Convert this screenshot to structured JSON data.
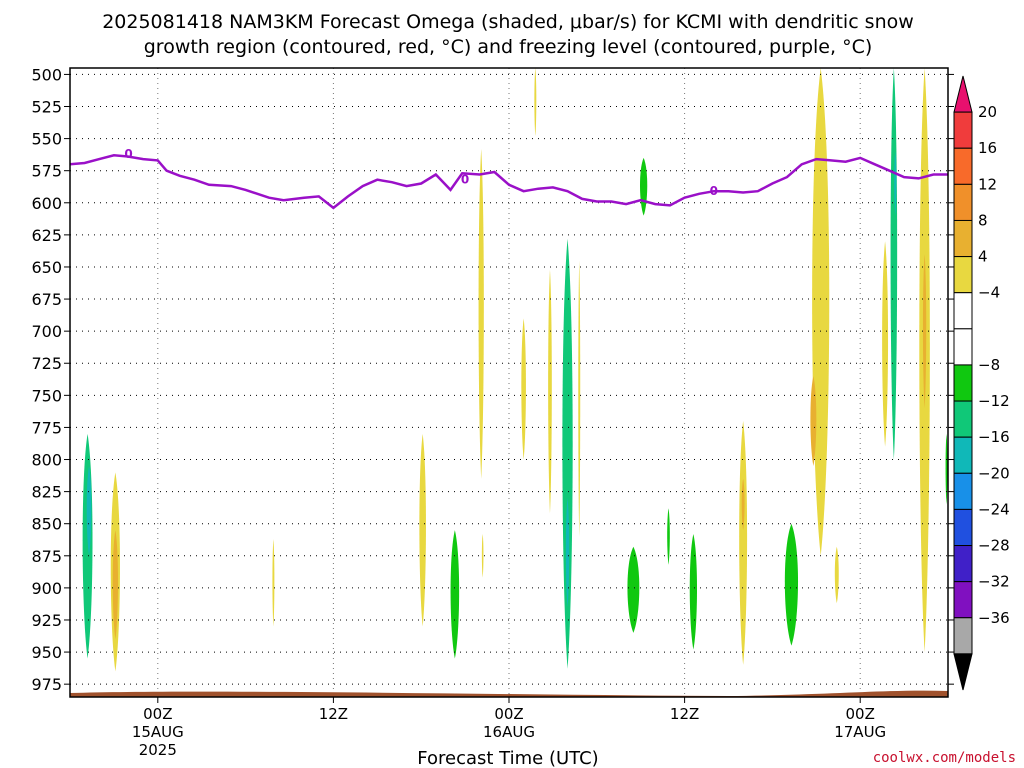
{
  "title_line1": "2025081418 NAM3KM Forecast Omega (shaded, μbar/s) for KCMI with dendritic snow",
  "title_line2": "growth region (contoured, red, °C) and freezing level (contoured, purple, °C)",
  "credit": "coolwx.com/models",
  "chart_data": {
    "type": "heatmap",
    "title": "2025081418 NAM3KM Forecast Omega (shaded, μbar/s) for KCMI with dendritic snow growth region (contoured, red, °C) and freezing level (contoured, purple, °C)",
    "xlabel": "Forecast Time (UTC)",
    "ylabel": "",
    "x_range_hours_from_2025081418": [
      0,
      60
    ],
    "y_scale": "pressure (inverted)",
    "ylim_hpa": [
      985,
      495
    ],
    "y_ticks": [
      "500",
      "525",
      "550",
      "575",
      "600",
      "625",
      "650",
      "675",
      "700",
      "725",
      "750",
      "775",
      "800",
      "825",
      "850",
      "875",
      "900",
      "925",
      "950",
      "975"
    ],
    "x_ticks": [
      {
        "hour": 6,
        "lines": [
          "00Z",
          "15AUG",
          "2025"
        ]
      },
      {
        "hour": 18,
        "lines": [
          "12Z"
        ]
      },
      {
        "hour": 30,
        "lines": [
          "00Z",
          "16AUG"
        ]
      },
      {
        "hour": 42,
        "lines": [
          "12Z"
        ]
      },
      {
        "hour": 54,
        "lines": [
          "00Z",
          "17AUG"
        ]
      }
    ],
    "grid": "dotted",
    "colorbar": {
      "placement": "right",
      "labels": [
        "20",
        "16",
        "12",
        "8",
        "4",
        "−4",
        "−8",
        "−12",
        "−16",
        "−20",
        "−24",
        "−28",
        "−32",
        "−36"
      ],
      "bands_top_to_bottom": [
        {
          "color": "#e8106e",
          "shape": "triangle"
        },
        {
          "color": "#f03c3c"
        },
        {
          "color": "#f86a2a"
        },
        {
          "color": "#f0902a"
        },
        {
          "color": "#e8b030"
        },
        {
          "color": "#e8d840"
        },
        {
          "color": "#ffffff"
        },
        {
          "color": "#ffffff"
        },
        {
          "color": "#10c810"
        },
        {
          "color": "#10c878"
        },
        {
          "color": "#10b8b8"
        },
        {
          "color": "#1890e8"
        },
        {
          "color": "#2050e0"
        },
        {
          "color": "#4020c8"
        },
        {
          "color": "#8010c0"
        },
        {
          "color": "#a8a8a8"
        },
        {
          "color": "#000000",
          "shape": "triangle"
        }
      ]
    },
    "freezing_level": {
      "color": "#9a10c8",
      "label": "0",
      "points": [
        [
          0,
          570
        ],
        [
          1,
          569
        ],
        [
          2,
          566
        ],
        [
          3,
          563
        ],
        [
          4,
          564
        ],
        [
          5,
          566
        ],
        [
          6,
          567
        ],
        [
          6.6,
          575
        ],
        [
          7.5,
          579
        ],
        [
          8.5,
          582
        ],
        [
          9.5,
          586
        ],
        [
          11,
          587
        ],
        [
          12,
          590
        ],
        [
          13.6,
          596
        ],
        [
          14.6,
          598
        ],
        [
          16,
          596
        ],
        [
          17,
          595
        ],
        [
          18,
          604
        ],
        [
          19,
          595
        ],
        [
          20,
          587
        ],
        [
          21,
          582
        ],
        [
          22,
          584
        ],
        [
          23,
          587
        ],
        [
          24,
          585
        ],
        [
          25,
          578
        ],
        [
          26,
          590
        ],
        [
          26.8,
          577
        ],
        [
          28,
          578
        ],
        [
          29,
          576
        ],
        [
          30,
          586
        ],
        [
          31,
          591
        ],
        [
          32,
          589
        ],
        [
          33,
          588
        ],
        [
          34,
          591
        ],
        [
          35,
          597
        ],
        [
          36,
          599
        ],
        [
          37,
          599
        ],
        [
          38,
          601
        ],
        [
          39,
          598
        ],
        [
          40,
          601
        ],
        [
          41,
          602
        ],
        [
          42,
          596
        ],
        [
          43,
          593
        ],
        [
          44,
          591
        ],
        [
          45,
          591
        ],
        [
          46,
          592
        ],
        [
          47,
          591
        ],
        [
          48,
          585
        ],
        [
          49,
          580
        ],
        [
          50,
          570
        ],
        [
          51,
          566
        ],
        [
          52,
          567
        ],
        [
          53,
          568
        ],
        [
          54,
          565
        ],
        [
          55,
          570
        ],
        [
          56,
          575
        ],
        [
          57,
          580
        ],
        [
          58,
          581
        ],
        [
          59,
          578
        ],
        [
          60,
          578
        ]
      ],
      "label_points": [
        [
          4,
          562
        ],
        [
          27,
          582
        ],
        [
          44,
          591
        ]
      ]
    },
    "surface_shading": {
      "color": "#a0522d",
      "pressure_hpa": 985
    },
    "omega_regions": [
      {
        "value": -10,
        "x": 1.2,
        "pmin": 780,
        "pmax": 955,
        "w": 0.75
      },
      {
        "value": -14,
        "x": 1.3,
        "pmin": 805,
        "pmax": 875,
        "w": 0.35
      },
      {
        "value": 6,
        "x": 3.1,
        "pmin": 810,
        "pmax": 965,
        "w": 0.7
      },
      {
        "value": 10,
        "x": 3.1,
        "pmin": 855,
        "pmax": 940,
        "w": 0.4
      },
      {
        "value": 6,
        "x": 13.9,
        "pmin": 862,
        "pmax": 930,
        "w": 0.15
      },
      {
        "value": 6,
        "x": 24.1,
        "pmin": 780,
        "pmax": 930,
        "w": 0.5
      },
      {
        "value": -6,
        "x": 26.3,
        "pmin": 855,
        "pmax": 955,
        "w": 0.65
      },
      {
        "value": 6,
        "x": 28.1,
        "pmin": 558,
        "pmax": 815,
        "w": 0.4
      },
      {
        "value": 6,
        "x": 28.2,
        "pmin": 858,
        "pmax": 892,
        "w": 0.12
      },
      {
        "value": 6,
        "x": 31.0,
        "pmin": 690,
        "pmax": 800,
        "w": 0.35
      },
      {
        "value": 6,
        "x": 32.8,
        "pmin": 652,
        "pmax": 842,
        "w": 0.28
      },
      {
        "value": -8,
        "x": 34.0,
        "pmin": 628,
        "pmax": 963,
        "w": 0.78
      },
      {
        "value": -14,
        "x": 34.0,
        "pmin": 830,
        "pmax": 915,
        "w": 0.25
      },
      {
        "value": 6,
        "x": 34.8,
        "pmin": 645,
        "pmax": 860,
        "w": 0.15
      },
      {
        "value": 6,
        "x": 31.8,
        "pmin": 495,
        "pmax": 548,
        "w": 0.15
      },
      {
        "value": -6,
        "x": 38.5,
        "pmin": 868,
        "pmax": 935,
        "w": 0.9
      },
      {
        "value": -6,
        "x": 39.2,
        "pmin": 565,
        "pmax": 610,
        "w": 0.55
      },
      {
        "value": -6,
        "x": 40.9,
        "pmin": 838,
        "pmax": 882,
        "w": 0.2
      },
      {
        "value": -6,
        "x": 42.6,
        "pmin": 858,
        "pmax": 948,
        "w": 0.55
      },
      {
        "value": 6,
        "x": 46.0,
        "pmin": 770,
        "pmax": 960,
        "w": 0.6
      },
      {
        "value": 10,
        "x": 46.0,
        "pmin": 815,
        "pmax": 855,
        "w": 0.22
      },
      {
        "value": -6,
        "x": 49.3,
        "pmin": 850,
        "pmax": 945,
        "w": 1.0
      },
      {
        "value": 6,
        "x": 51.3,
        "pmin": 495,
        "pmax": 875,
        "w": 1.3
      },
      {
        "value": 10,
        "x": 50.8,
        "pmin": 735,
        "pmax": 805,
        "w": 0.45
      },
      {
        "value": 6,
        "x": 52.4,
        "pmin": 868,
        "pmax": 912,
        "w": 0.3
      },
      {
        "value": 6,
        "x": 55.7,
        "pmin": 630,
        "pmax": 790,
        "w": 0.45
      },
      {
        "value": -8,
        "x": 56.3,
        "pmin": 495,
        "pmax": 800,
        "w": 0.5
      },
      {
        "value": -14,
        "x": 56.4,
        "pmin": 560,
        "pmax": 610,
        "w": 0.15
      },
      {
        "value": 6,
        "x": 58.4,
        "pmin": 495,
        "pmax": 950,
        "w": 0.8
      },
      {
        "value": 10,
        "x": 58.4,
        "pmin": 640,
        "pmax": 760,
        "w": 0.25
      },
      {
        "value": -6,
        "x": 59.9,
        "pmin": 780,
        "pmax": 835,
        "w": 0.15
      }
    ]
  }
}
